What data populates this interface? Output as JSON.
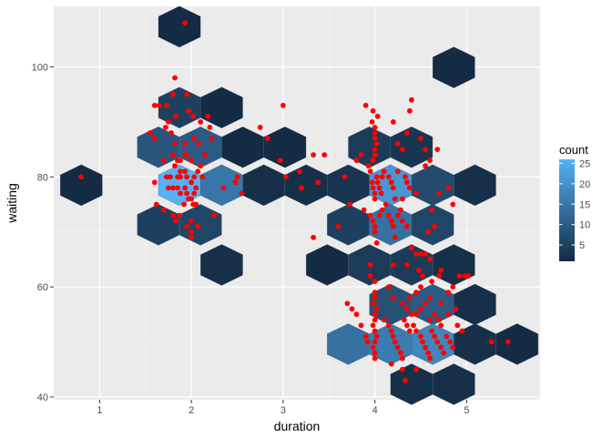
{
  "chart_data": {
    "type": "hexbin",
    "title": "",
    "xlabel": "duration",
    "ylabel": "waiting",
    "xlim": [
      0.5,
      5.8
    ],
    "ylim": [
      39.5,
      111
    ],
    "x_ticks": [
      1,
      2,
      3,
      4,
      5
    ],
    "y_ticks": [
      40,
      60,
      80,
      100
    ],
    "grid": true,
    "hex_size": {
      "width": 0.458,
      "height": 7.45
    },
    "hex_bins": [
      {
        "x": 0.8,
        "y": 78.5,
        "count": 1
      },
      {
        "x": 1.87,
        "y": 107.3,
        "count": 1
      },
      {
        "x": 1.87,
        "y": 92.6,
        "count": 5
      },
      {
        "x": 2.33,
        "y": 92.6,
        "count": 1
      },
      {
        "x": 1.64,
        "y": 85.4,
        "count": 9
      },
      {
        "x": 2.1,
        "y": 85.4,
        "count": 10
      },
      {
        "x": 2.56,
        "y": 85.4,
        "count": 1
      },
      {
        "x": 3.02,
        "y": 85.4,
        "count": 1
      },
      {
        "x": 3.94,
        "y": 85.4,
        "count": 4
      },
      {
        "x": 4.4,
        "y": 85.4,
        "count": 3
      },
      {
        "x": 4.86,
        "y": 99.9,
        "count": 1
      },
      {
        "x": 1.87,
        "y": 78.5,
        "count": 26
      },
      {
        "x": 2.33,
        "y": 78.5,
        "count": 15
      },
      {
        "x": 1.64,
        "y": 71.3,
        "count": 5
      },
      {
        "x": 2.1,
        "y": 71.3,
        "count": 6
      },
      {
        "x": 2.79,
        "y": 78.5,
        "count": 2
      },
      {
        "x": 3.25,
        "y": 78.5,
        "count": 2
      },
      {
        "x": 3.71,
        "y": 78.5,
        "count": 3
      },
      {
        "x": 4.17,
        "y": 78.5,
        "count": 21
      },
      {
        "x": 4.63,
        "y": 78.5,
        "count": 7
      },
      {
        "x": 5.09,
        "y": 78.5,
        "count": 2
      },
      {
        "x": 2.33,
        "y": 64.0,
        "count": 2
      },
      {
        "x": 3.71,
        "y": 71.3,
        "count": 5
      },
      {
        "x": 4.17,
        "y": 71.3,
        "count": 14
      },
      {
        "x": 4.63,
        "y": 71.3,
        "count": 6
      },
      {
        "x": 3.48,
        "y": 64.0,
        "count": 1
      },
      {
        "x": 3.94,
        "y": 64.0,
        "count": 4
      },
      {
        "x": 4.4,
        "y": 64.0,
        "count": 4
      },
      {
        "x": 4.86,
        "y": 64.0,
        "count": 2
      },
      {
        "x": 4.17,
        "y": 56.8,
        "count": 8
      },
      {
        "x": 4.63,
        "y": 56.8,
        "count": 10
      },
      {
        "x": 5.09,
        "y": 56.8,
        "count": 2
      },
      {
        "x": 3.71,
        "y": 49.6,
        "count": 14
      },
      {
        "x": 4.17,
        "y": 49.6,
        "count": 16
      },
      {
        "x": 4.63,
        "y": 49.6,
        "count": 18
      },
      {
        "x": 5.09,
        "y": 49.6,
        "count": 2
      },
      {
        "x": 5.55,
        "y": 49.6,
        "count": 1
      },
      {
        "x": 4.4,
        "y": 42.3,
        "count": 2
      },
      {
        "x": 4.86,
        "y": 42.3,
        "count": 2
      }
    ],
    "points": [
      {
        "x": 0.8,
        "y": 80
      },
      {
        "x": 1.93,
        "y": 108
      },
      {
        "x": 1.82,
        "y": 98
      },
      {
        "x": 1.8,
        "y": 95
      },
      {
        "x": 1.95,
        "y": 95
      },
      {
        "x": 1.73,
        "y": 93
      },
      {
        "x": 1.97,
        "y": 92
      },
      {
        "x": 1.83,
        "y": 91
      },
      {
        "x": 2.02,
        "y": 91
      },
      {
        "x": 1.6,
        "y": 93
      },
      {
        "x": 1.65,
        "y": 93
      },
      {
        "x": 1.75,
        "y": 90
      },
      {
        "x": 2.1,
        "y": 90
      },
      {
        "x": 2.18,
        "y": 91
      },
      {
        "x": 2.2,
        "y": 89
      },
      {
        "x": 1.55,
        "y": 88
      },
      {
        "x": 1.72,
        "y": 89
      },
      {
        "x": 1.78,
        "y": 88
      },
      {
        "x": 1.6,
        "y": 87
      },
      {
        "x": 1.82,
        "y": 86
      },
      {
        "x": 1.93,
        "y": 86
      },
      {
        "x": 2.03,
        "y": 87
      },
      {
        "x": 2.08,
        "y": 86
      },
      {
        "x": 2.15,
        "y": 84
      },
      {
        "x": 2.22,
        "y": 87
      },
      {
        "x": 1.7,
        "y": 83
      },
      {
        "x": 1.8,
        "y": 84
      },
      {
        "x": 1.85,
        "y": 83
      },
      {
        "x": 1.88,
        "y": 83
      },
      {
        "x": 1.93,
        "y": 84
      },
      {
        "x": 1.95,
        "y": 84
      },
      {
        "x": 2.0,
        "y": 83
      },
      {
        "x": 1.82,
        "y": 82
      },
      {
        "x": 1.88,
        "y": 81
      },
      {
        "x": 1.93,
        "y": 81
      },
      {
        "x": 2.1,
        "y": 82
      },
      {
        "x": 1.73,
        "y": 80
      },
      {
        "x": 1.77,
        "y": 80
      },
      {
        "x": 1.85,
        "y": 80
      },
      {
        "x": 1.88,
        "y": 80
      },
      {
        "x": 1.95,
        "y": 80
      },
      {
        "x": 2.0,
        "y": 79
      },
      {
        "x": 2.03,
        "y": 80
      },
      {
        "x": 2.07,
        "y": 81
      },
      {
        "x": 2.12,
        "y": 80
      },
      {
        "x": 1.6,
        "y": 79
      },
      {
        "x": 1.75,
        "y": 78
      },
      {
        "x": 1.8,
        "y": 78
      },
      {
        "x": 1.85,
        "y": 78
      },
      {
        "x": 1.88,
        "y": 77
      },
      {
        "x": 1.93,
        "y": 78
      },
      {
        "x": 1.95,
        "y": 77
      },
      {
        "x": 2.0,
        "y": 76
      },
      {
        "x": 2.03,
        "y": 77
      },
      {
        "x": 2.05,
        "y": 78
      },
      {
        "x": 1.92,
        "y": 75
      },
      {
        "x": 1.97,
        "y": 76
      },
      {
        "x": 2.02,
        "y": 75
      },
      {
        "x": 2.05,
        "y": 75
      },
      {
        "x": 1.62,
        "y": 75
      },
      {
        "x": 1.7,
        "y": 74
      },
      {
        "x": 1.8,
        "y": 73
      },
      {
        "x": 1.83,
        "y": 72
      },
      {
        "x": 1.87,
        "y": 73
      },
      {
        "x": 1.95,
        "y": 71
      },
      {
        "x": 2.0,
        "y": 72
      },
      {
        "x": 2.0,
        "y": 70
      },
      {
        "x": 2.07,
        "y": 71
      },
      {
        "x": 2.0,
        "y": 69
      },
      {
        "x": 2.25,
        "y": 73
      },
      {
        "x": 2.35,
        "y": 78
      },
      {
        "x": 2.48,
        "y": 79
      },
      {
        "x": 2.5,
        "y": 80
      },
      {
        "x": 2.55,
        "y": 77
      },
      {
        "x": 2.75,
        "y": 89
      },
      {
        "x": 2.83,
        "y": 87
      },
      {
        "x": 2.97,
        "y": 83
      },
      {
        "x": 3.0,
        "y": 93
      },
      {
        "x": 3.03,
        "y": 80
      },
      {
        "x": 3.18,
        "y": 81
      },
      {
        "x": 3.2,
        "y": 78
      },
      {
        "x": 3.33,
        "y": 84
      },
      {
        "x": 3.38,
        "y": 79
      },
      {
        "x": 3.45,
        "y": 84
      },
      {
        "x": 3.33,
        "y": 69
      },
      {
        "x": 3.6,
        "y": 71
      },
      {
        "x": 3.67,
        "y": 80
      },
      {
        "x": 3.73,
        "y": 75
      },
      {
        "x": 3.8,
        "y": 83
      },
      {
        "x": 3.85,
        "y": 84
      },
      {
        "x": 3.88,
        "y": 74
      },
      {
        "x": 3.9,
        "y": 93
      },
      {
        "x": 3.95,
        "y": 81
      },
      {
        "x": 3.97,
        "y": 79
      },
      {
        "x": 3.98,
        "y": 78
      },
      {
        "x": 4.0,
        "y": 77
      },
      {
        "x": 4.0,
        "y": 76
      },
      {
        "x": 4.02,
        "y": 80
      },
      {
        "x": 4.03,
        "y": 79
      },
      {
        "x": 4.05,
        "y": 78
      },
      {
        "x": 4.07,
        "y": 77
      },
      {
        "x": 4.08,
        "y": 80
      },
      {
        "x": 4.1,
        "y": 81
      },
      {
        "x": 3.93,
        "y": 82
      },
      {
        "x": 3.98,
        "y": 83
      },
      {
        "x": 4.0,
        "y": 84
      },
      {
        "x": 4.0,
        "y": 85
      },
      {
        "x": 4.02,
        "y": 86
      },
      {
        "x": 4.0,
        "y": 87
      },
      {
        "x": 4.0,
        "y": 88
      },
      {
        "x": 4.0,
        "y": 89
      },
      {
        "x": 3.97,
        "y": 90
      },
      {
        "x": 4.03,
        "y": 91
      },
      {
        "x": 3.98,
        "y": 92
      },
      {
        "x": 3.95,
        "y": 73
      },
      {
        "x": 3.98,
        "y": 72
      },
      {
        "x": 4.0,
        "y": 71
      },
      {
        "x": 4.0,
        "y": 70
      },
      {
        "x": 4.02,
        "y": 68
      },
      {
        "x": 4.05,
        "y": 73
      },
      {
        "x": 4.08,
        "y": 74
      },
      {
        "x": 4.12,
        "y": 75
      },
      {
        "x": 4.15,
        "y": 80
      },
      {
        "x": 4.18,
        "y": 79
      },
      {
        "x": 4.2,
        "y": 78
      },
      {
        "x": 4.22,
        "y": 76
      },
      {
        "x": 4.25,
        "y": 81
      },
      {
        "x": 4.28,
        "y": 74
      },
      {
        "x": 4.3,
        "y": 76
      },
      {
        "x": 4.33,
        "y": 80
      },
      {
        "x": 4.35,
        "y": 79
      },
      {
        "x": 4.38,
        "y": 78
      },
      {
        "x": 4.15,
        "y": 73
      },
      {
        "x": 4.18,
        "y": 72
      },
      {
        "x": 4.2,
        "y": 71
      },
      {
        "x": 4.25,
        "y": 73
      },
      {
        "x": 4.3,
        "y": 72
      },
      {
        "x": 4.35,
        "y": 71
      },
      {
        "x": 4.22,
        "y": 69
      },
      {
        "x": 4.2,
        "y": 90
      },
      {
        "x": 4.25,
        "y": 86
      },
      {
        "x": 4.3,
        "y": 85
      },
      {
        "x": 4.35,
        "y": 88
      },
      {
        "x": 4.38,
        "y": 92
      },
      {
        "x": 4.4,
        "y": 94
      },
      {
        "x": 4.5,
        "y": 87
      },
      {
        "x": 4.55,
        "y": 85
      },
      {
        "x": 4.6,
        "y": 83
      },
      {
        "x": 4.68,
        "y": 85
      },
      {
        "x": 4.55,
        "y": 82
      },
      {
        "x": 4.45,
        "y": 77
      },
      {
        "x": 4.62,
        "y": 74
      },
      {
        "x": 4.7,
        "y": 77
      },
      {
        "x": 4.65,
        "y": 71
      },
      {
        "x": 4.58,
        "y": 70
      },
      {
        "x": 4.8,
        "y": 78
      },
      {
        "x": 4.85,
        "y": 75
      },
      {
        "x": 4.4,
        "y": 67
      },
      {
        "x": 4.45,
        "y": 66
      },
      {
        "x": 4.5,
        "y": 66
      },
      {
        "x": 4.55,
        "y": 66
      },
      {
        "x": 4.35,
        "y": 64
      },
      {
        "x": 4.2,
        "y": 64
      },
      {
        "x": 3.95,
        "y": 64
      },
      {
        "x": 4.72,
        "y": 63
      },
      {
        "x": 4.6,
        "y": 65
      },
      {
        "x": 4.48,
        "y": 63
      },
      {
        "x": 4.52,
        "y": 62
      },
      {
        "x": 4.62,
        "y": 61
      },
      {
        "x": 4.7,
        "y": 62
      },
      {
        "x": 4.5,
        "y": 60
      },
      {
        "x": 4.45,
        "y": 59
      },
      {
        "x": 4.38,
        "y": 58
      },
      {
        "x": 4.6,
        "y": 58
      },
      {
        "x": 4.72,
        "y": 57
      },
      {
        "x": 4.8,
        "y": 59
      },
      {
        "x": 4.85,
        "y": 60
      },
      {
        "x": 4.92,
        "y": 62
      },
      {
        "x": 4.98,
        "y": 62
      },
      {
        "x": 5.02,
        "y": 62
      },
      {
        "x": 4.15,
        "y": 60
      },
      {
        "x": 4.2,
        "y": 58
      },
      {
        "x": 4.3,
        "y": 57
      },
      {
        "x": 4.35,
        "y": 56
      },
      {
        "x": 4.4,
        "y": 55
      },
      {
        "x": 4.45,
        "y": 55
      },
      {
        "x": 4.5,
        "y": 56
      },
      {
        "x": 4.55,
        "y": 57
      },
      {
        "x": 4.65,
        "y": 55
      },
      {
        "x": 3.95,
        "y": 62
      },
      {
        "x": 4.0,
        "y": 61
      },
      {
        "x": 4.0,
        "y": 59
      },
      {
        "x": 4.0,
        "y": 58
      },
      {
        "x": 3.98,
        "y": 57
      },
      {
        "x": 4.02,
        "y": 56
      },
      {
        "x": 4.0,
        "y": 55
      },
      {
        "x": 4.0,
        "y": 54
      },
      {
        "x": 3.98,
        "y": 53
      },
      {
        "x": 4.0,
        "y": 52
      },
      {
        "x": 4.02,
        "y": 51
      },
      {
        "x": 4.0,
        "y": 50
      },
      {
        "x": 3.98,
        "y": 49
      },
      {
        "x": 4.0,
        "y": 48
      },
      {
        "x": 4.0,
        "y": 47
      },
      {
        "x": 3.7,
        "y": 57
      },
      {
        "x": 3.75,
        "y": 56
      },
      {
        "x": 3.8,
        "y": 55
      },
      {
        "x": 3.85,
        "y": 53
      },
      {
        "x": 3.9,
        "y": 51
      },
      {
        "x": 3.92,
        "y": 50
      },
      {
        "x": 4.1,
        "y": 54
      },
      {
        "x": 4.15,
        "y": 53
      },
      {
        "x": 4.18,
        "y": 52
      },
      {
        "x": 4.2,
        "y": 51
      },
      {
        "x": 4.22,
        "y": 50
      },
      {
        "x": 4.25,
        "y": 49
      },
      {
        "x": 4.28,
        "y": 48
      },
      {
        "x": 4.3,
        "y": 47
      },
      {
        "x": 4.18,
        "y": 46
      },
      {
        "x": 4.32,
        "y": 54
      },
      {
        "x": 4.35,
        "y": 53
      },
      {
        "x": 4.38,
        "y": 52
      },
      {
        "x": 4.42,
        "y": 53
      },
      {
        "x": 4.45,
        "y": 52
      },
      {
        "x": 4.5,
        "y": 51
      },
      {
        "x": 4.52,
        "y": 50
      },
      {
        "x": 4.55,
        "y": 49
      },
      {
        "x": 4.58,
        "y": 48
      },
      {
        "x": 4.6,
        "y": 47
      },
      {
        "x": 4.62,
        "y": 52
      },
      {
        "x": 4.65,
        "y": 51
      },
      {
        "x": 4.68,
        "y": 50
      },
      {
        "x": 4.72,
        "y": 49
      },
      {
        "x": 4.75,
        "y": 48
      },
      {
        "x": 4.78,
        "y": 51
      },
      {
        "x": 4.82,
        "y": 50
      },
      {
        "x": 4.85,
        "y": 49
      },
      {
        "x": 4.9,
        "y": 53
      },
      {
        "x": 4.95,
        "y": 52
      },
      {
        "x": 4.6,
        "y": 54
      },
      {
        "x": 4.7,
        "y": 54
      },
      {
        "x": 4.8,
        "y": 55
      },
      {
        "x": 4.72,
        "y": 53
      },
      {
        "x": 4.88,
        "y": 56
      },
      {
        "x": 4.3,
        "y": 45
      },
      {
        "x": 4.33,
        "y": 43
      },
      {
        "x": 4.45,
        "y": 45
      },
      {
        "x": 5.27,
        "y": 50
      },
      {
        "x": 5.45,
        "y": 50
      }
    ],
    "legend": {
      "title": "count",
      "labels": [
        "5",
        "10",
        "15",
        "20",
        "25"
      ],
      "min": 1,
      "max": 26,
      "position": "right"
    },
    "colors": {
      "low": "#132B43",
      "high": "#56B1F7",
      "point": "#ff0000",
      "panel": "#ebebeb",
      "grid_major": "#ffffff",
      "grid_minor": "#f5f5f5"
    }
  }
}
